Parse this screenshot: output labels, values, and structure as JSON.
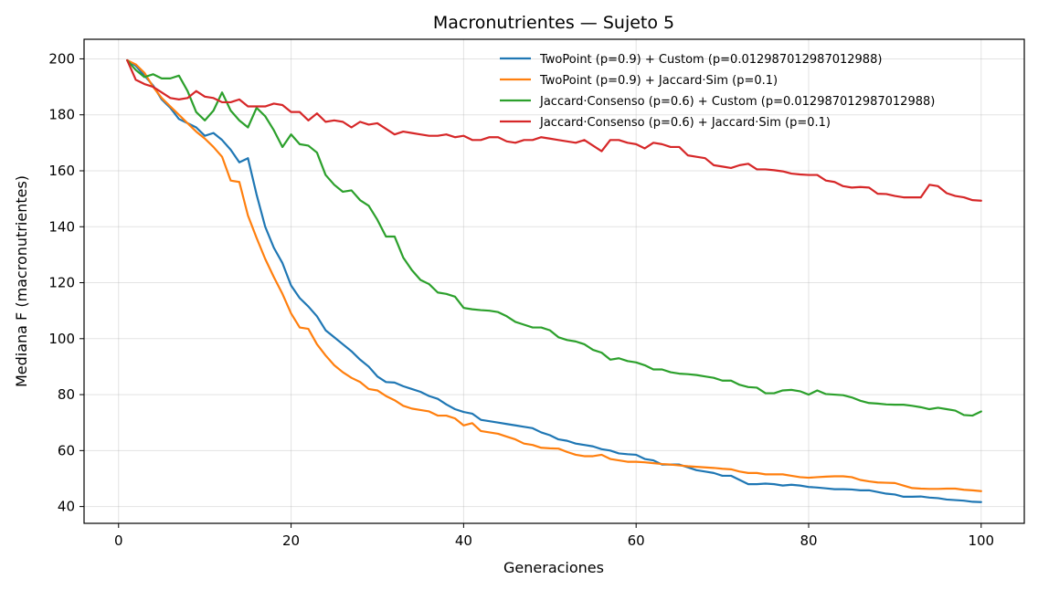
{
  "chart_data": {
    "type": "line",
    "title": "Macronutrientes — Sujeto 5",
    "xlabel": "Generaciones",
    "ylabel": "Mediana F (macronutrientes)",
    "xlim": [
      -4,
      105
    ],
    "ylim": [
      34,
      207
    ],
    "xticks": [
      0,
      20,
      40,
      60,
      80,
      100
    ],
    "yticks": [
      40,
      60,
      80,
      100,
      120,
      140,
      160,
      180,
      200
    ],
    "grid": true,
    "legend_position": "top-right",
    "x": [
      1,
      2,
      3,
      4,
      5,
      6,
      7,
      8,
      9,
      10,
      11,
      12,
      13,
      14,
      15,
      16,
      17,
      18,
      19,
      20,
      21,
      22,
      23,
      24,
      25,
      26,
      27,
      28,
      29,
      30,
      31,
      32,
      33,
      34,
      35,
      36,
      37,
      38,
      39,
      40,
      41,
      42,
      43,
      44,
      45,
      46,
      47,
      48,
      49,
      50,
      51,
      52,
      53,
      54,
      55,
      56,
      57,
      58,
      59,
      60,
      61,
      62,
      63,
      64,
      65,
      66,
      67,
      68,
      69,
      70,
      71,
      72,
      73,
      74,
      75,
      76,
      77,
      78,
      79,
      80,
      81,
      82,
      83,
      84,
      85,
      86,
      87,
      88,
      89,
      90,
      91,
      92,
      93,
      94,
      95,
      96,
      97,
      98,
      99,
      100
    ],
    "series": [
      {
        "name": "TwoPoint (p=0.9) + Custom (p=0.012987012987012988)",
        "color": "#1f77b4",
        "values": [
          199.5,
          197.5,
          194,
          190.5,
          185.5,
          182.5,
          178.5,
          177,
          175.5,
          172.5,
          173.5,
          171,
          167.5,
          163,
          164.5,
          151.5,
          140,
          132.5,
          127,
          119,
          114.5,
          111.5,
          108,
          103,
          100.5,
          98,
          95.5,
          92.5,
          90,
          86.5,
          84.5,
          84.3,
          83,
          82,
          81,
          79.5,
          78.5,
          76.5,
          74.8,
          73.8,
          73.2,
          71,
          70.5,
          70,
          69.5,
          69,
          68.5,
          68,
          66.5,
          65.5,
          64,
          63.5,
          62.5,
          62,
          61.5,
          60.5,
          60,
          59,
          58.7,
          58.5,
          57,
          56.5,
          55,
          55,
          55,
          54,
          53,
          52.5,
          52,
          51,
          51,
          49.5,
          48,
          48,
          48.2,
          48,
          47.5,
          47.8,
          47.5,
          47,
          46.8,
          46.5,
          46.2,
          46.2,
          46.1,
          45.8,
          45.8,
          45.2,
          44.6,
          44.3,
          43.5,
          43.5,
          43.6,
          43.2,
          43,
          42.5,
          42.3,
          42.1,
          41.7,
          41.6
        ]
      },
      {
        "name": "TwoPoint (p=0.9) + Jaccard·Sim (p=0.1)",
        "color": "#ff7f0e",
        "values": [
          199.5,
          198,
          195,
          190,
          186,
          183,
          180,
          177,
          174,
          171.5,
          168.5,
          165,
          156.5,
          156,
          144,
          136,
          128.5,
          122,
          116,
          109,
          104,
          103.5,
          98,
          94,
          90.5,
          88,
          86,
          84.5,
          82,
          81.5,
          79.5,
          78,
          76,
          75,
          74.5,
          74,
          72.5,
          72.5,
          71.5,
          69,
          69.8,
          67,
          66.5,
          66,
          65,
          64,
          62.5,
          62,
          61,
          60.8,
          60.7,
          59.5,
          58.5,
          58,
          58,
          58.5,
          57,
          56.5,
          56,
          56,
          55.8,
          55.5,
          55.2,
          55,
          54.7,
          54.4,
          54.2,
          54,
          53.8,
          53.5,
          53.3,
          52.5,
          52,
          52,
          51.5,
          51.5,
          51.5,
          51,
          50.5,
          50.3,
          50.5,
          50.7,
          50.8,
          50.8,
          50.5,
          49.5,
          49,
          48.6,
          48.5,
          48.4,
          47.5,
          46.6,
          46.4,
          46.3,
          46.3,
          46.4,
          46.4,
          46,
          45.8,
          45.5
        ]
      },
      {
        "name": "Jaccard·Consenso (p=0.6) + Custom (p=0.012987012987012988)",
        "color": "#2ca02c",
        "values": [
          199.5,
          196,
          193.5,
          194.5,
          193,
          193,
          194,
          188.5,
          181,
          178,
          181.5,
          188,
          181.5,
          178,
          175.5,
          182.5,
          179.5,
          174.5,
          168.5,
          173,
          169.5,
          169,
          166.5,
          158.5,
          155,
          152.5,
          153,
          149.5,
          147.5,
          142.5,
          136.5,
          136.5,
          129,
          124.5,
          121,
          119.5,
          116.5,
          116,
          115,
          111,
          110.5,
          110.2,
          110,
          109.5,
          108,
          106,
          105,
          104,
          104,
          103,
          100.5,
          99.5,
          99,
          98,
          96,
          95,
          92.5,
          93,
          92,
          91.5,
          90.5,
          89,
          89,
          88,
          87.5,
          87.3,
          87,
          86.5,
          86,
          85,
          85,
          83.5,
          82.7,
          82.5,
          80.5,
          80.5,
          81.5,
          81.7,
          81.2,
          80,
          81.5,
          80.2,
          80,
          79.8,
          79,
          77.8,
          77,
          76.8,
          76.5,
          76.4,
          76.4,
          76,
          75.5,
          74.8,
          75.3,
          74.8,
          74.3,
          72.7,
          72.5,
          74
        ]
      },
      {
        "name": "Jaccard·Consenso (p=0.6) + Jaccard·Sim (p=0.1)",
        "color": "#d62728",
        "values": [
          199.5,
          192.5,
          191,
          190,
          188,
          186,
          185.5,
          186,
          188.5,
          186.5,
          186,
          184.5,
          184.5,
          185.5,
          183,
          183,
          183,
          184,
          183.5,
          181,
          181,
          178,
          180.5,
          177.5,
          178,
          177.5,
          175.5,
          177.5,
          176.5,
          177,
          175,
          173,
          174,
          173.5,
          173,
          172.5,
          172.5,
          173,
          172,
          172.5,
          171,
          171,
          172,
          172,
          170.5,
          170,
          171,
          171,
          172,
          171.5,
          171,
          170.5,
          170,
          171,
          169,
          167,
          171,
          171,
          170,
          169.5,
          168,
          170,
          169.5,
          168.5,
          168.5,
          165.5,
          165,
          164.5,
          162,
          161.5,
          161,
          162,
          162.5,
          160.5,
          160.5,
          160.2,
          159.8,
          159,
          158.7,
          158.5,
          158.5,
          156.5,
          156,
          154.5,
          154,
          154.2,
          154,
          151.8,
          151.7,
          151,
          150.5,
          150.5,
          150.5,
          155,
          154.5,
          152,
          151,
          150.5,
          149.5,
          149.3
        ]
      }
    ]
  }
}
